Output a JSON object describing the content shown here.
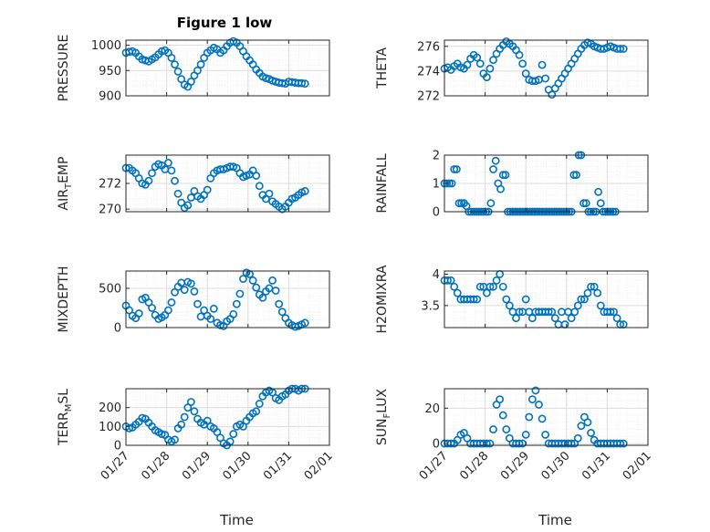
{
  "figure": {
    "title": "Figure 1 low"
  },
  "chart_data": [
    {
      "type": "scatter",
      "ylabel": "PRESSURE",
      "ylim": [
        900,
        1010
      ],
      "yticks": [
        900,
        950,
        1000
      ],
      "xlim": [
        0,
        5
      ],
      "xticks": [],
      "x": [
        0.0,
        0.08,
        0.16,
        0.24,
        0.32,
        0.4,
        0.48,
        0.56,
        0.64,
        0.72,
        0.8,
        0.88,
        0.96,
        1.04,
        1.12,
        1.2,
        1.28,
        1.36,
        1.44,
        1.52,
        1.6,
        1.68,
        1.76,
        1.84,
        1.92,
        2.0,
        2.08,
        2.16,
        2.24,
        2.32,
        2.4,
        2.48,
        2.56,
        2.64,
        2.72,
        2.8,
        2.88,
        2.96,
        3.04,
        3.12,
        3.2,
        3.28,
        3.36,
        3.44,
        3.52,
        3.6,
        3.68,
        3.76,
        3.84,
        3.92,
        4.0,
        4.08,
        4.16,
        4.24,
        4.32,
        4.4
      ],
      "y": [
        985,
        987,
        988,
        985,
        978,
        972,
        970,
        968,
        972,
        976,
        982,
        988,
        990,
        985,
        975,
        962,
        948,
        933,
        922,
        918,
        928,
        940,
        950,
        962,
        975,
        985,
        990,
        995,
        992,
        985,
        990,
        998,
        1005,
        1008,
        1005,
        998,
        988,
        978,
        970,
        962,
        952,
        945,
        938,
        935,
        933,
        930,
        928,
        926,
        925,
        924,
        928,
        927,
        926,
        925,
        925,
        924
      ]
    },
    {
      "type": "scatter",
      "ylabel": "THETA",
      "ylim": [
        272,
        276.5
      ],
      "yticks": [
        272,
        274,
        276
      ],
      "xlim": [
        0,
        5
      ],
      "xticks": [],
      "x": [
        0.0,
        0.08,
        0.16,
        0.24,
        0.32,
        0.4,
        0.48,
        0.56,
        0.64,
        0.72,
        0.8,
        0.88,
        0.96,
        1.04,
        1.12,
        1.2,
        1.28,
        1.36,
        1.44,
        1.52,
        1.6,
        1.68,
        1.76,
        1.84,
        1.92,
        2.0,
        2.08,
        2.16,
        2.24,
        2.32,
        2.4,
        2.48,
        2.56,
        2.64,
        2.72,
        2.8,
        2.88,
        2.96,
        3.04,
        3.12,
        3.2,
        3.28,
        3.36,
        3.44,
        3.52,
        3.6,
        3.68,
        3.76,
        3.84,
        3.92,
        4.0,
        4.08,
        4.16,
        4.24,
        4.32,
        4.4
      ],
      "y": [
        274.2,
        274.3,
        274.1,
        274.4,
        274.6,
        274.3,
        274.2,
        274.5,
        275.0,
        275.3,
        275.1,
        274.6,
        273.8,
        273.5,
        274.2,
        274.9,
        275.4,
        275.8,
        276.1,
        276.4,
        276.2,
        276.0,
        275.7,
        275.3,
        274.6,
        273.8,
        273.3,
        273.2,
        273.2,
        273.3,
        274.5,
        273.4,
        272.5,
        272.1,
        272.6,
        273.0,
        273.4,
        273.8,
        274.2,
        274.6,
        275.0,
        275.4,
        275.8,
        276.1,
        276.3,
        276.2,
        276.0,
        275.9,
        275.8,
        275.8,
        275.9,
        276.0,
        275.9,
        275.8,
        275.8,
        275.8
      ]
    },
    {
      "type": "scatter",
      "ylabel": "AIR_TEMP",
      "ylim": [
        269.8,
        274.2
      ],
      "yticks": [
        270,
        272
      ],
      "xlim": [
        0,
        5
      ],
      "xticks": [],
      "x": [
        0.0,
        0.08,
        0.16,
        0.24,
        0.32,
        0.4,
        0.48,
        0.56,
        0.64,
        0.72,
        0.8,
        0.88,
        0.96,
        1.04,
        1.12,
        1.2,
        1.28,
        1.36,
        1.44,
        1.52,
        1.6,
        1.68,
        1.76,
        1.84,
        1.92,
        2.0,
        2.08,
        2.16,
        2.24,
        2.32,
        2.4,
        2.48,
        2.56,
        2.64,
        2.72,
        2.8,
        2.88,
        2.96,
        3.04,
        3.12,
        3.2,
        3.28,
        3.36,
        3.44,
        3.52,
        3.6,
        3.68,
        3.76,
        3.84,
        3.92,
        4.0,
        4.08,
        4.16,
        4.24,
        4.32,
        4.4
      ],
      "y": [
        273.2,
        273.2,
        273.0,
        272.8,
        272.4,
        272.0,
        271.9,
        272.2,
        272.8,
        273.3,
        273.5,
        273.4,
        273.1,
        273.6,
        273.0,
        272.2,
        271.2,
        270.5,
        270.1,
        270.3,
        270.9,
        271.4,
        271.0,
        270.8,
        271.1,
        271.5,
        272.4,
        272.8,
        273.0,
        273.1,
        273.1,
        273.2,
        273.3,
        273.3,
        273.2,
        272.8,
        272.5,
        272.6,
        272.7,
        273.0,
        272.6,
        271.8,
        271.1,
        270.8,
        271.2,
        270.6,
        270.4,
        270.2,
        270.0,
        270.2,
        270.5,
        270.8,
        270.9,
        271.1,
        271.3,
        271.4
      ]
    },
    {
      "type": "scatter",
      "ylabel": "RAINFALL",
      "ylim": [
        0,
        2
      ],
      "yticks": [
        0,
        1,
        2
      ],
      "xlim": [
        0,
        5
      ],
      "xticks": [],
      "x": [
        0.0,
        0.06,
        0.12,
        0.18,
        0.24,
        0.3,
        0.36,
        0.42,
        0.48,
        0.54,
        0.6,
        0.66,
        0.72,
        0.78,
        0.84,
        0.9,
        0.96,
        1.02,
        1.08,
        1.14,
        1.2,
        1.26,
        1.32,
        1.38,
        1.44,
        1.5,
        1.56,
        1.62,
        1.68,
        1.74,
        1.8,
        1.86,
        1.92,
        1.98,
        2.04,
        2.1,
        2.16,
        2.22,
        2.28,
        2.34,
        2.4,
        2.46,
        2.52,
        2.58,
        2.64,
        2.7,
        2.76,
        2.82,
        2.88,
        2.94,
        3.0,
        3.06,
        3.12,
        3.18,
        3.24,
        3.3,
        3.36,
        3.42,
        3.48,
        3.54,
        3.6,
        3.66,
        3.72,
        3.78,
        3.84,
        3.9,
        3.96,
        4.02,
        4.08,
        4.14,
        4.2
      ],
      "y": [
        1.0,
        1.0,
        1.0,
        1.0,
        1.5,
        1.5,
        0.3,
        0.3,
        0.3,
        0.2,
        0.0,
        0.0,
        0.0,
        0.0,
        0.0,
        0.0,
        0.0,
        0.0,
        0.0,
        0.3,
        1.5,
        1.8,
        1.0,
        0.8,
        1.3,
        1.3,
        0.0,
        0.0,
        0.0,
        0.0,
        0.0,
        0.0,
        0.0,
        0.0,
        0.0,
        0.0,
        0.0,
        0.0,
        0.0,
        0.0,
        0.0,
        0.0,
        0.0,
        0.0,
        0.0,
        0.0,
        0.0,
        0.0,
        0.0,
        0.0,
        0.0,
        0.0,
        0.0,
        1.3,
        1.3,
        2.0,
        2.0,
        0.3,
        0.3,
        0.0,
        0.0,
        0.0,
        0.0,
        0.7,
        0.3,
        0.0,
        0.0,
        0.0,
        0.0,
        0.0,
        0.0
      ]
    },
    {
      "type": "scatter",
      "ylabel": "MIXDEPTH",
      "ylim": [
        0,
        720
      ],
      "yticks": [
        0,
        500
      ],
      "xlim": [
        0,
        5
      ],
      "xticks": [],
      "x": [
        0.0,
        0.08,
        0.16,
        0.24,
        0.32,
        0.4,
        0.48,
        0.56,
        0.64,
        0.72,
        0.8,
        0.88,
        0.96,
        1.04,
        1.12,
        1.2,
        1.28,
        1.36,
        1.44,
        1.52,
        1.6,
        1.68,
        1.76,
        1.84,
        1.92,
        2.0,
        2.08,
        2.16,
        2.24,
        2.32,
        2.4,
        2.48,
        2.56,
        2.64,
        2.72,
        2.8,
        2.88,
        2.96,
        3.04,
        3.12,
        3.2,
        3.28,
        3.36,
        3.44,
        3.52,
        3.6,
        3.68,
        3.76,
        3.84,
        3.92,
        4.0,
        4.08,
        4.16,
        4.24,
        4.32,
        4.4
      ],
      "y": [
        280,
        220,
        150,
        120,
        180,
        360,
        380,
        320,
        250,
        160,
        110,
        130,
        160,
        220,
        320,
        450,
        520,
        570,
        480,
        580,
        560,
        460,
        300,
        140,
        220,
        150,
        110,
        240,
        60,
        30,
        20,
        80,
        110,
        170,
        300,
        430,
        620,
        700,
        680,
        600,
        510,
        420,
        380,
        460,
        500,
        600,
        470,
        300,
        200,
        120,
        60,
        30,
        10,
        20,
        40,
        60
      ]
    },
    {
      "type": "scatter",
      "ylabel": "H2OMIXRA",
      "ylim": [
        3.15,
        4.05
      ],
      "yticks": [
        3.5,
        4
      ],
      "xlim": [
        0,
        5
      ],
      "xticks": [],
      "x": [
        0.0,
        0.08,
        0.16,
        0.24,
        0.32,
        0.4,
        0.48,
        0.56,
        0.64,
        0.72,
        0.8,
        0.88,
        0.96,
        1.04,
        1.12,
        1.2,
        1.28,
        1.36,
        1.44,
        1.52,
        1.6,
        1.68,
        1.76,
        1.84,
        1.92,
        2.0,
        2.08,
        2.16,
        2.24,
        2.32,
        2.4,
        2.48,
        2.56,
        2.64,
        2.72,
        2.8,
        2.88,
        2.96,
        3.04,
        3.12,
        3.2,
        3.28,
        3.36,
        3.44,
        3.52,
        3.6,
        3.68,
        3.76,
        3.84,
        3.92,
        4.0,
        4.08,
        4.16,
        4.24,
        4.32,
        4.4
      ],
      "y": [
        3.9,
        3.9,
        3.9,
        3.8,
        3.7,
        3.6,
        3.6,
        3.6,
        3.6,
        3.6,
        3.6,
        3.8,
        3.8,
        3.7,
        3.8,
        3.8,
        3.9,
        4.0,
        3.8,
        3.6,
        3.5,
        3.4,
        3.3,
        3.4,
        3.4,
        3.6,
        3.4,
        3.3,
        3.4,
        3.4,
        3.4,
        3.4,
        3.4,
        3.4,
        3.3,
        3.2,
        3.4,
        3.2,
        3.4,
        3.3,
        3.4,
        3.5,
        3.6,
        3.6,
        3.7,
        3.8,
        3.8,
        3.7,
        3.5,
        3.4,
        3.4,
        3.4,
        3.4,
        3.3,
        3.2,
        3.2
      ]
    },
    {
      "type": "scatter",
      "ylabel": "TERR_MSL",
      "ylim": [
        0,
        300
      ],
      "yticks": [
        0,
        100,
        200
      ],
      "xlim": [
        0,
        5
      ],
      "xticks": [
        0,
        1,
        2,
        3,
        4,
        5
      ],
      "xticklabels": [
        "01/27",
        "01/28",
        "01/29",
        "01/30",
        "01/31",
        "02/01"
      ],
      "xlabel": "Time",
      "x": [
        0.0,
        0.08,
        0.16,
        0.24,
        0.32,
        0.4,
        0.48,
        0.56,
        0.64,
        0.72,
        0.8,
        0.88,
        0.96,
        1.04,
        1.12,
        1.2,
        1.28,
        1.36,
        1.44,
        1.52,
        1.6,
        1.68,
        1.76,
        1.84,
        1.92,
        2.0,
        2.08,
        2.16,
        2.24,
        2.32,
        2.4,
        2.48,
        2.56,
        2.64,
        2.72,
        2.8,
        2.88,
        2.96,
        3.04,
        3.12,
        3.2,
        3.28,
        3.36,
        3.44,
        3.52,
        3.6,
        3.68,
        3.76,
        3.84,
        3.92,
        4.0,
        4.08,
        4.16,
        4.24,
        4.32,
        4.4
      ],
      "y": [
        100,
        90,
        95,
        110,
        125,
        145,
        140,
        120,
        100,
        80,
        70,
        60,
        55,
        30,
        20,
        30,
        90,
        110,
        150,
        200,
        230,
        180,
        140,
        120,
        110,
        130,
        100,
        90,
        70,
        40,
        10,
        0,
        20,
        60,
        100,
        110,
        100,
        130,
        150,
        170,
        180,
        220,
        260,
        280,
        290,
        280,
        250,
        240,
        260,
        270,
        290,
        300,
        300,
        290,
        300,
        300
      ]
    },
    {
      "type": "scatter",
      "ylabel": "SUN_FLUX",
      "ylim": [
        -1,
        31
      ],
      "yticks": [
        0,
        20
      ],
      "xlim": [
        0,
        5
      ],
      "xticks": [
        0,
        1,
        2,
        3,
        4,
        5
      ],
      "xticklabels": [
        "01/27",
        "01/28",
        "01/29",
        "01/30",
        "01/31",
        "02/01"
      ],
      "xlabel": "Time",
      "x": [
        0.0,
        0.08,
        0.16,
        0.24,
        0.32,
        0.4,
        0.48,
        0.56,
        0.64,
        0.72,
        0.8,
        0.88,
        0.96,
        1.04,
        1.12,
        1.2,
        1.28,
        1.36,
        1.44,
        1.52,
        1.6,
        1.68,
        1.76,
        1.84,
        1.92,
        2.0,
        2.08,
        2.16,
        2.24,
        2.32,
        2.4,
        2.48,
        2.56,
        2.64,
        2.72,
        2.8,
        2.88,
        2.96,
        3.04,
        3.12,
        3.2,
        3.28,
        3.36,
        3.44,
        3.52,
        3.6,
        3.68,
        3.76,
        3.84,
        3.92,
        4.0,
        4.08,
        4.16,
        4.24,
        4.32,
        4.4
      ],
      "y": [
        0,
        0,
        0,
        0,
        2,
        5,
        6,
        3,
        0,
        0,
        0,
        0,
        0,
        0,
        0,
        8,
        22,
        25,
        16,
        8,
        3,
        0,
        0,
        0,
        0,
        5,
        15,
        25,
        30,
        22,
        14,
        5,
        0,
        0,
        0,
        0,
        0,
        0,
        0,
        0,
        0,
        3,
        10,
        15,
        12,
        6,
        2,
        0,
        0,
        0,
        0,
        0,
        0,
        0,
        0,
        0
      ]
    }
  ]
}
